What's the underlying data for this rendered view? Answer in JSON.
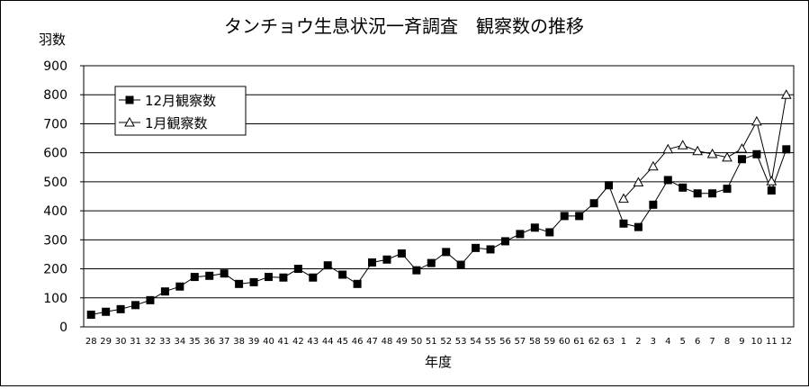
{
  "chart_data": {
    "type": "line",
    "title": "タンチョウ生息状況一斉調査　観察数の推移",
    "ylabel": "羽数",
    "xlabel": "年度",
    "ylim": [
      0,
      900
    ],
    "yticks": [
      0,
      100,
      200,
      300,
      400,
      500,
      600,
      700,
      800,
      900
    ],
    "grid": true,
    "legend_position": "top-left",
    "categories": [
      "28",
      "29",
      "30",
      "31",
      "32",
      "33",
      "34",
      "35",
      "36",
      "37",
      "38",
      "39",
      "40",
      "41",
      "42",
      "43",
      "44",
      "45",
      "46",
      "47",
      "48",
      "49",
      "50",
      "51",
      "52",
      "53",
      "54",
      "55",
      "56",
      "57",
      "58",
      "59",
      "60",
      "61",
      "62",
      "63",
      "1",
      "2",
      "3",
      "4",
      "5",
      "6",
      "7",
      "8",
      "9",
      "10",
      "11",
      "12"
    ],
    "series": [
      {
        "name": "12月観察数",
        "marker": "square",
        "color": "#000000",
        "values": [
          42,
          52,
          61,
          75,
          92,
          122,
          139,
          172,
          176,
          184,
          148,
          154,
          172,
          170,
          200,
          170,
          212,
          180,
          148,
          222,
          232,
          253,
          195,
          220,
          258,
          214,
          272,
          267,
          295,
          320,
          342,
          326,
          382,
          382,
          426,
          488,
          356,
          344,
          421,
          506,
          480,
          460,
          460,
          476,
          578,
          595,
          470,
          612
        ]
      },
      {
        "name": "1月観察数",
        "marker": "triangle",
        "color": "#000000",
        "values": [
          null,
          null,
          null,
          null,
          null,
          null,
          null,
          null,
          null,
          null,
          null,
          null,
          null,
          null,
          null,
          null,
          null,
          null,
          null,
          null,
          null,
          null,
          null,
          null,
          null,
          null,
          null,
          null,
          null,
          null,
          null,
          null,
          null,
          null,
          null,
          null,
          442,
          498,
          553,
          612,
          626,
          606,
          596,
          584,
          614,
          708,
          502,
          800
        ]
      }
    ]
  }
}
